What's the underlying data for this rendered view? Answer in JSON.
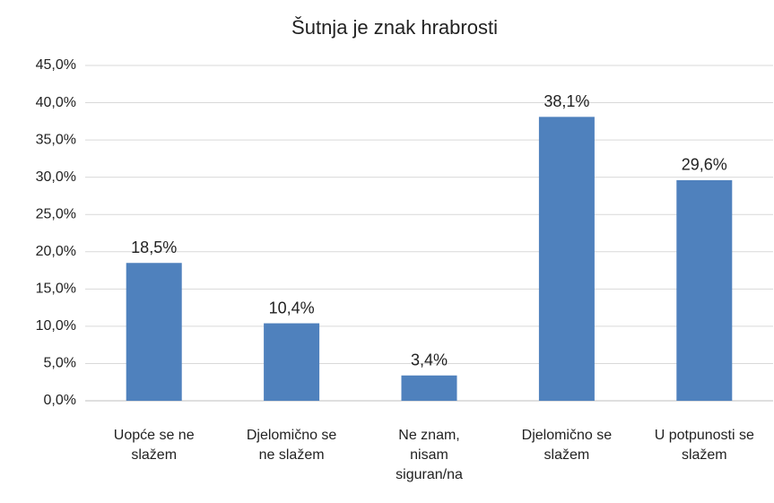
{
  "chart_data": {
    "type": "bar",
    "title": "Šutnja je znak hrabrosti",
    "categories": [
      "Uopće se ne slažem",
      "Djelomično se ne slažem",
      "Ne znam, nisam siguran/na",
      "Djelomično se slažem",
      "U potpunosti se slažem"
    ],
    "values": [
      18.5,
      10.4,
      3.4,
      38.1,
      29.6
    ],
    "value_labels": [
      "18,5%",
      "10,4%",
      "3,4%",
      "38,1%",
      "29,6%"
    ],
    "color": "#4f81bd",
    "ylim": [
      0,
      45
    ],
    "yticks": [
      {
        "value": 0,
        "label": "0,0%"
      },
      {
        "value": 5,
        "label": "5,0%"
      },
      {
        "value": 10,
        "label": "10,0%"
      },
      {
        "value": 15,
        "label": "15,0%"
      },
      {
        "value": 20,
        "label": "20,0%"
      },
      {
        "value": 25,
        "label": "25,0%"
      },
      {
        "value": 30,
        "label": "30,0%"
      },
      {
        "value": 35,
        "label": "35,0%"
      },
      {
        "value": 40,
        "label": "40,0%"
      },
      {
        "value": 45,
        "label": "45,0%"
      }
    ],
    "grid": true
  }
}
